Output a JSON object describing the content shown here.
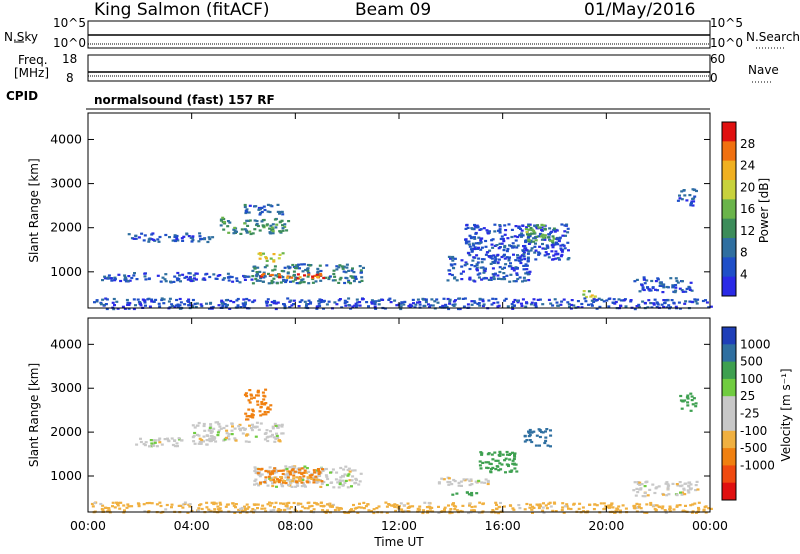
{
  "header": {
    "station": "King Salmon (fitACF)",
    "beam": "Beam 09",
    "date": "01/May/2016"
  },
  "summary_panels": {
    "nsky_label": "N.Sky",
    "nsky_ticks": [
      "10^5",
      "10^0"
    ],
    "nsearch_label": "N.Search",
    "nsearch_ticks": [
      "10^5",
      "10^0"
    ],
    "freq_label_line1": "Freq.",
    "freq_label_line2": "[MHz]",
    "freq_ticks": [
      "18",
      "8"
    ],
    "nave_label": "Nave",
    "nave_ticks": [
      "60",
      "0"
    ],
    "cpid_label": "CPID",
    "cpid_text": "normalsound (fast) 157 RF"
  },
  "colors": {
    "power_scale": [
      "#2a2ae6",
      "#1f4fc8",
      "#2f6fa0",
      "#3c8c5a",
      "#6ab44a",
      "#c8d23c",
      "#f0b020",
      "#f07010",
      "#e01010"
    ],
    "velocity_scale": [
      "#e01010",
      "#f04a10",
      "#f08010",
      "#f0b040",
      "#c8c8c8",
      "#c8c8c8",
      "#70cc40",
      "#3ea050",
      "#2f6fa0",
      "#1f3fb8"
    ]
  },
  "chart_data": [
    {
      "type": "heatmap",
      "name": "power",
      "xlabel": "Time UT",
      "ylabel": "Slant Range [km]",
      "x_ticks": [
        "00:00",
        "04:00",
        "08:00",
        "12:00",
        "16:00",
        "20:00",
        "00:00"
      ],
      "x_range_hours": [
        0,
        24
      ],
      "y_ticks": [
        "4000",
        "3000",
        "2000",
        "1000"
      ],
      "ylim": [
        180,
        4600
      ],
      "colorbar_label": "Power [dB]",
      "colorbar_ticks": [
        "28",
        "24",
        "20",
        "16",
        "12",
        "8",
        "4"
      ],
      "colorbar_range": [
        0,
        32
      ],
      "regions": [
        {
          "t": [
            5.0,
            7.7
          ],
          "r": [
            1880,
            2250
          ],
          "value": 12
        },
        {
          "t": [
            1.5,
            4.8
          ],
          "r": [
            1700,
            1900
          ],
          "value": 6
        },
        {
          "t": [
            6.0,
            7.5
          ],
          "r": [
            2300,
            2550
          ],
          "value": 7
        },
        {
          "t": [
            6.3,
            10.6
          ],
          "r": [
            750,
            1200
          ],
          "value": 9
        },
        {
          "t": [
            6.6,
            9.1
          ],
          "r": [
            870,
            1000
          ],
          "value": 28
        },
        {
          "t": [
            6.5,
            7.5
          ],
          "r": [
            1250,
            1450
          ],
          "value": 20
        },
        {
          "t": [
            0.5,
            6.3
          ],
          "r": [
            780,
            1000
          ],
          "value": 5
        },
        {
          "t": [
            13.8,
            17.0
          ],
          "r": [
            800,
            1400
          ],
          "value": 6
        },
        {
          "t": [
            14.5,
            18.5
          ],
          "r": [
            1300,
            2100
          ],
          "value": 5
        },
        {
          "t": [
            16.8,
            18.0
          ],
          "r": [
            1700,
            2100
          ],
          "value": 14
        },
        {
          "t": [
            21.0,
            23.3
          ],
          "r": [
            560,
            900
          ],
          "value": 6
        },
        {
          "t": [
            19.0,
            19.6
          ],
          "r": [
            400,
            600
          ],
          "value": 18
        },
        {
          "t": [
            22.7,
            23.5
          ],
          "r": [
            2500,
            2900
          ],
          "value": 6
        },
        {
          "t": [
            0.0,
            24.0
          ],
          "r": [
            180,
            420
          ],
          "value": 5
        }
      ]
    },
    {
      "type": "heatmap",
      "name": "velocity",
      "xlabel": "Time UT",
      "ylabel": "Slant Range [km]",
      "x_ticks": [
        "00:00",
        "04:00",
        "08:00",
        "12:00",
        "16:00",
        "20:00",
        "00:00"
      ],
      "x_range_hours": [
        0,
        24
      ],
      "y_ticks": [
        "4000",
        "3000",
        "2000",
        "1000"
      ],
      "ylim": [
        180,
        4600
      ],
      "colorbar_label": "Velocity [m s⁻¹]",
      "colorbar_ticks": [
        "1000",
        "500",
        "100",
        "25",
        "-25",
        "-100",
        "-500",
        "-1000"
      ],
      "regions": [
        {
          "t": [
            4.0,
            7.5
          ],
          "r": [
            1800,
            2250
          ],
          "value": 0
        },
        {
          "t": [
            1.8,
            4.8
          ],
          "r": [
            1700,
            1900
          ],
          "value": 0
        },
        {
          "t": [
            6.3,
            10.5
          ],
          "r": [
            750,
            1250
          ],
          "value": 0
        },
        {
          "t": [
            6.5,
            9.0
          ],
          "r": [
            850,
            1200
          ],
          "value": -200
        },
        {
          "t": [
            6.8,
            9.0
          ],
          "r": [
            900,
            1000
          ],
          "value": -50
        },
        {
          "t": [
            6.0,
            7.0
          ],
          "r": [
            2300,
            3000
          ],
          "value": -200
        },
        {
          "t": [
            14.0,
            15.0
          ],
          "r": [
            580,
            700
          ],
          "value": 200
        },
        {
          "t": [
            16.8,
            17.8
          ],
          "r": [
            1700,
            2100
          ],
          "value": 600
        },
        {
          "t": [
            15.0,
            16.5
          ],
          "r": [
            1100,
            1600
          ],
          "value": 300
        },
        {
          "t": [
            13.5,
            15.5
          ],
          "r": [
            800,
            1000
          ],
          "value": 0
        },
        {
          "t": [
            21.0,
            23.5
          ],
          "r": [
            560,
            900
          ],
          "value": 0
        },
        {
          "t": [
            22.8,
            23.5
          ],
          "r": [
            2500,
            2900
          ],
          "value": 200
        },
        {
          "t": [
            0.0,
            24.0
          ],
          "r": [
            180,
            420
          ],
          "value": -50
        }
      ]
    }
  ]
}
